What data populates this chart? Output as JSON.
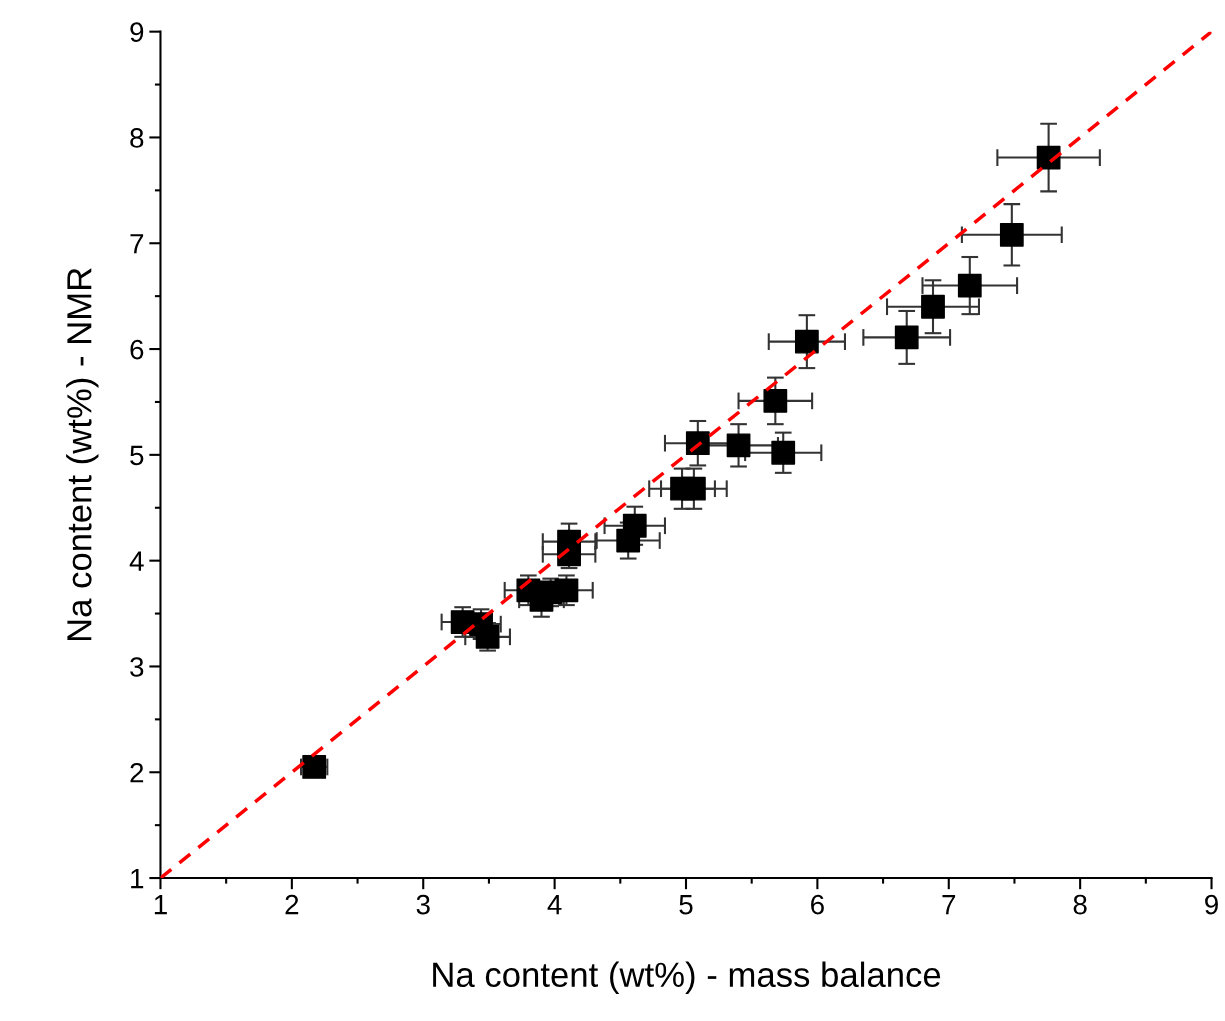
{
  "chart_data": {
    "type": "scatter",
    "xlabel": "Na content (wt%) - mass balance",
    "ylabel": "Na content (wt%) - NMR",
    "xlim": [
      1,
      9
    ],
    "ylim": [
      1,
      9
    ],
    "xticks": [
      1,
      2,
      3,
      4,
      5,
      6,
      7,
      8,
      9
    ],
    "yticks": [
      1,
      2,
      3,
      4,
      5,
      6,
      7,
      8,
      9
    ],
    "grid": false,
    "marker": "square",
    "series": [
      {
        "color": "#000000",
        "x": [
          2.17,
          3.3,
          3.44,
          3.49,
          3.8,
          3.9,
          3.97,
          4.09,
          4.11,
          4.11,
          4.61,
          4.56,
          4.97,
          5.06,
          5.09,
          5.4,
          5.74,
          5.68,
          5.92,
          6.68,
          6.88,
          7.16,
          7.48,
          7.76
        ],
        "values": [
          2.05,
          3.42,
          3.4,
          3.28,
          3.72,
          3.63,
          3.7,
          3.72,
          4.18,
          4.06,
          4.33,
          4.19,
          4.68,
          4.68,
          5.11,
          5.09,
          5.02,
          5.51,
          6.07,
          6.11,
          6.4,
          6.6,
          7.08,
          7.81
        ],
        "xerrors": [
          0.1,
          0.16,
          0.15,
          0.17,
          0.18,
          0.17,
          0.15,
          0.2,
          0.2,
          0.2,
          0.23,
          0.24,
          0.25,
          0.25,
          0.25,
          0.3,
          0.29,
          0.28,
          0.29,
          0.33,
          0.35,
          0.36,
          0.38,
          0.39
        ],
        "errors": [
          0.06,
          0.14,
          0.14,
          0.13,
          0.14,
          0.16,
          0.13,
          0.14,
          0.17,
          0.13,
          0.18,
          0.17,
          0.19,
          0.19,
          0.21,
          0.2,
          0.19,
          0.22,
          0.25,
          0.25,
          0.25,
          0.27,
          0.29,
          0.32
        ]
      },
      {
        "type": "line",
        "color": "#ff0000",
        "line_style": "dashed",
        "marker": "none",
        "x": [
          1,
          9
        ],
        "values": [
          1,
          9
        ]
      }
    ]
  }
}
